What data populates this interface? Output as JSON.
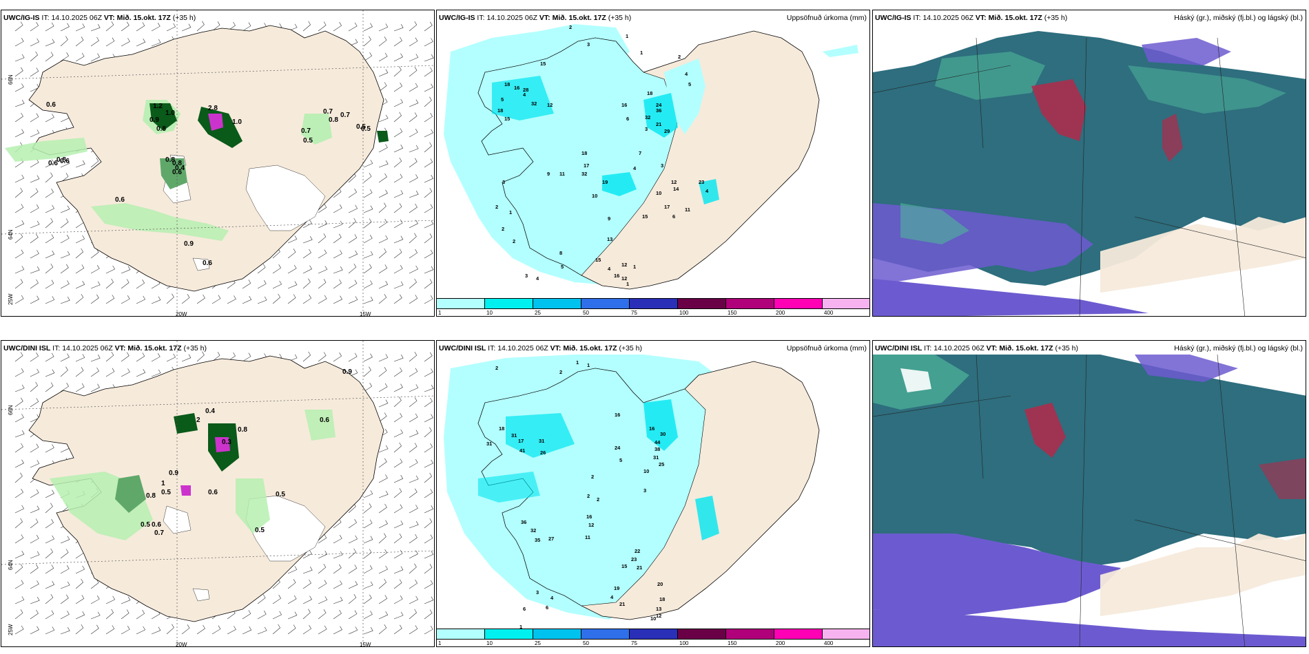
{
  "headers": {
    "top": {
      "model": "UWC/IG-IS",
      "it_label": "IT:",
      "it_value": "14.10.2025 06Z",
      "vt_label": "VT:",
      "vt_value": "Mið. 15.okt. 17Z",
      "lead": "(+35 h)"
    },
    "bottom": {
      "model": "UWC/DINI ISL",
      "it_label": "IT:",
      "it_value": "14.10.2025 06Z",
      "vt_label": "VT:",
      "vt_value": "Mið. 15.okt. 17Z",
      "lead": "(+35 h)"
    }
  },
  "right_titles": {
    "precip": "Uppsöfnuð úrkoma (mm)",
    "clouds": "Háský (gr.), miðský (fj.bl.) og lágský (bl.)"
  },
  "axis": {
    "lat66": "66N",
    "lat64": "64N",
    "lon25": "25W",
    "lon20": "20W",
    "lon15": "15W"
  },
  "colorbar": {
    "ticks": [
      "1",
      "10",
      "25",
      "50",
      "75",
      "100",
      "150",
      "200",
      "400"
    ],
    "colors": [
      "#b3ffff",
      "#00f0f0",
      "#00c2ee",
      "#2f6fea",
      "#2a2fb8",
      "#6a0046",
      "#b0007a",
      "#ff00b5",
      "#f7b3f0"
    ]
  },
  "colors": {
    "land": "#f6eadb",
    "light_green": "#b6f0b0",
    "dark_green": "#0a5a1a",
    "light_cyan": "#b3ffff",
    "cyan": "#00e6f0",
    "cloud_teal": "#2e6e7e",
    "cloud_violet": "#6c5bd0",
    "cloud_green": "#4fb59a",
    "cloud_red": "#b22a4a"
  },
  "ptype_labels": {
    "top": [
      "0.6",
      "0.6",
      "0.6",
      "0.8",
      "1.2",
      "1.0",
      "0.9",
      "0.8",
      "2.8",
      "1.0",
      "0.5",
      "0.7",
      "0.8",
      "0.7",
      "0.5",
      "0.7",
      "0.5",
      "0.8",
      "0.8",
      "0.6",
      "0.4",
      "0.6",
      "0.9",
      "0.6"
    ],
    "bottom": [
      "0.9",
      "0.6",
      "0.4",
      "2",
      "0.8",
      "0.3",
      "0.9",
      "1",
      "0.5",
      "0.8",
      "0.6",
      "0.5",
      "0.5",
      "0.7",
      "0.5",
      "0.6"
    ]
  },
  "precip_labels": {
    "top": [
      "2",
      "3",
      "1",
      "1",
      "15",
      "18",
      "16",
      "28",
      "32",
      "12",
      "18",
      "15",
      "5",
      "4",
      "16",
      "18",
      "24",
      "32",
      "36",
      "21",
      "29",
      "2",
      "4",
      "5",
      "6",
      "3",
      "7",
      "4",
      "9",
      "11",
      "32",
      "19",
      "18",
      "17",
      "10",
      "9",
      "13",
      "4",
      "3",
      "12",
      "10",
      "15",
      "17",
      "14",
      "23",
      "4",
      "11",
      "6",
      "2",
      "1",
      "3",
      "2",
      "2",
      "3",
      "4",
      "5",
      "8",
      "15",
      "16",
      "12",
      "12",
      "1",
      "1"
    ],
    "bottom": [
      "2",
      "1",
      "1",
      "2",
      "16",
      "18",
      "31",
      "17",
      "31",
      "41",
      "31",
      "26",
      "24",
      "16",
      "30",
      "44",
      "38",
      "31",
      "25",
      "10",
      "2",
      "2",
      "5",
      "3",
      "2",
      "36",
      "32",
      "35",
      "27",
      "12",
      "11",
      "16",
      "22",
      "23",
      "21",
      "19",
      "4",
      "21",
      "15",
      "20",
      "18",
      "13",
      "12",
      "10",
      "6",
      "3",
      "4",
      "6",
      "1"
    ]
  }
}
